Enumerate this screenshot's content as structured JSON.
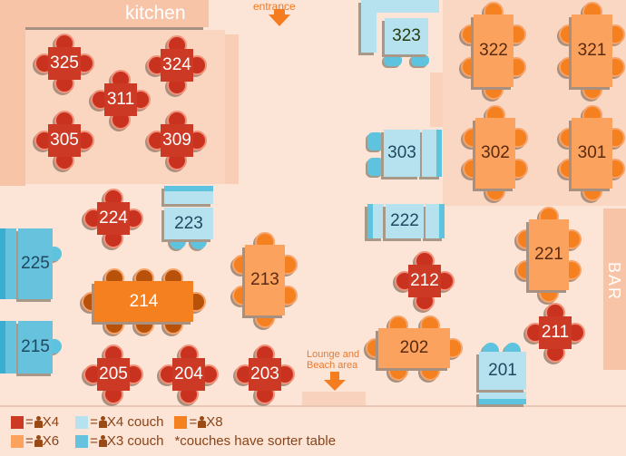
{
  "labels": {
    "kitchen": "kitchen",
    "entrance": "entrance",
    "bar": "BAR",
    "lounge_line1": "Lounge and",
    "lounge_line2": "Beach area"
  },
  "tables": {
    "t325": "325",
    "t324": "324",
    "t311": "311",
    "t305": "305",
    "t309": "309",
    "t323": "323",
    "t322": "322",
    "t321": "321",
    "t303": "303",
    "t302": "302",
    "t301": "301",
    "t224": "224",
    "t223": "223",
    "t222": "222",
    "t221": "221",
    "t225": "225",
    "t214": "214",
    "t213": "213",
    "t212": "212",
    "t215": "215",
    "t211": "211",
    "t202": "202",
    "t201": "201",
    "t205": "205",
    "t204": "204",
    "t203": "203"
  },
  "legend": {
    "red_text": "X4",
    "light_blue_text": "X4 couch",
    "dark_orange_text": "X8",
    "light_orange_text": "X6",
    "dark_blue_text": "X3 couch",
    "note": "*couches have sorter table",
    "eq": "="
  },
  "colors": {
    "x4": "#cc3a26",
    "x4_couch": "#b6e1ef",
    "x8": "#f5801f",
    "x6": "#fba25e",
    "x3_couch": "#66c2dd"
  }
}
